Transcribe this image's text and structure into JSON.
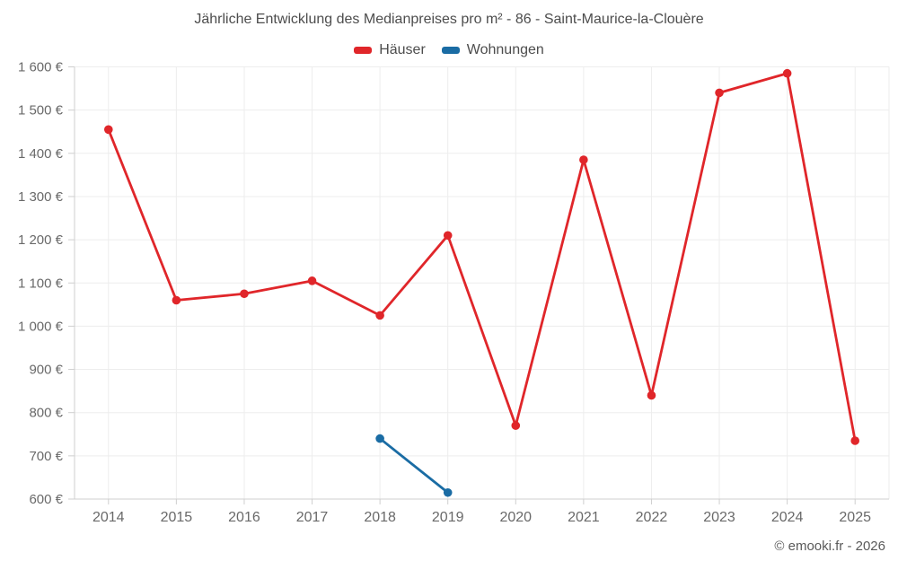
{
  "title": "Jährliche Entwicklung des Medianpreises pro m² - 86 - Saint-Maurice-la-Clouère",
  "legend": {
    "items": [
      {
        "label": "Häuser",
        "color": "#e0262a"
      },
      {
        "label": "Wohnungen",
        "color": "#1a6ca4"
      }
    ]
  },
  "footer": "© emooki.fr - 2026",
  "chart_data": {
    "type": "line",
    "title": "Jährliche Entwicklung des Medianpreises pro m² - 86 - Saint-Maurice-la-Clouère",
    "x": [
      2014,
      2015,
      2016,
      2017,
      2018,
      2019,
      2020,
      2021,
      2022,
      2023,
      2024,
      2025
    ],
    "series": [
      {
        "name": "Häuser",
        "color": "#e0262a",
        "values": [
          1455,
          1060,
          1075,
          1105,
          1025,
          1210,
          770,
          1385,
          840,
          1540,
          1585,
          735
        ]
      },
      {
        "name": "Wohnungen",
        "color": "#1a6ca4",
        "values": [
          null,
          null,
          null,
          null,
          740,
          615,
          null,
          null,
          null,
          null,
          null,
          null
        ]
      }
    ],
    "ylabel": "",
    "xlabel": "",
    "yunit": "€",
    "ylim": [
      600,
      1600
    ],
    "ytick_step": 100,
    "grid": true,
    "legend_position": "top"
  }
}
